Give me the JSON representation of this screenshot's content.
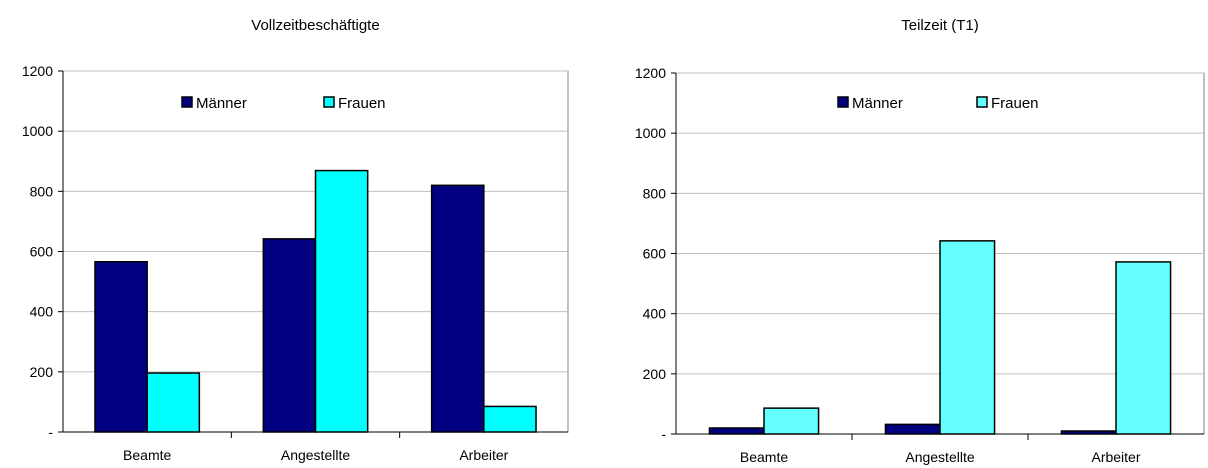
{
  "chart_data": [
    {
      "type": "bar",
      "title": "Vollzeitbeschäftigte",
      "categories": [
        "Beamte",
        "Angestellte",
        "Arbeiter"
      ],
      "series": [
        {
          "name": "Männer",
          "values": [
            566,
            642,
            820
          ],
          "color": "#000080"
        },
        {
          "name": "Frauen",
          "values": [
            196,
            869,
            85
          ],
          "color": "#00FFFF"
        }
      ],
      "ylim": [
        0,
        1200
      ],
      "yticks": [
        0,
        200,
        400,
        600,
        800,
        1000,
        1200
      ],
      "ytick_labels": [
        "-",
        "200",
        "400",
        "600",
        "800",
        "1000",
        "1200"
      ],
      "grid": true,
      "legend_position": "top"
    },
    {
      "type": "bar",
      "title": "Teilzeit (T1)",
      "categories": [
        "Beamte",
        "Angestellte",
        "Arbeiter"
      ],
      "series": [
        {
          "name": "Männer",
          "values": [
            20,
            32,
            10
          ],
          "color": "#000080"
        },
        {
          "name": "Frauen",
          "values": [
            86,
            642,
            572
          ],
          "color": "#66FFFF"
        }
      ],
      "ylim": [
        0,
        1200
      ],
      "yticks": [
        0,
        200,
        400,
        600,
        800,
        1000,
        1200
      ],
      "ytick_labels": [
        "-",
        "200",
        "400",
        "600",
        "800",
        "1000",
        "1200"
      ],
      "grid": true,
      "legend_position": "top"
    }
  ]
}
